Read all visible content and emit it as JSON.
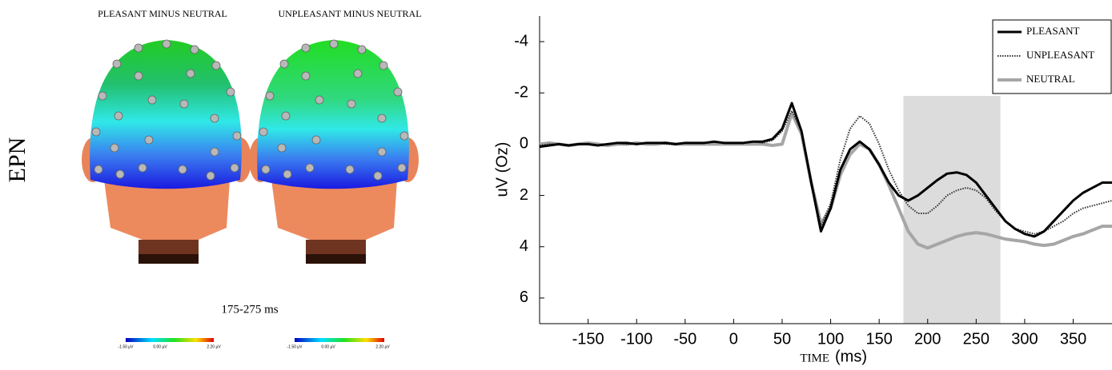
{
  "figure": {
    "row_label": "EPN",
    "map_titles": [
      "PLEASANT MINUS NEUTRAL",
      "UNPLEASANT MINUS NEUTRAL"
    ],
    "time_window": "175-275 ms",
    "colorbar_labels": [
      "-1.50 µV",
      "0.00 µV",
      "2.20 µV"
    ]
  },
  "chart_data": {
    "type": "line",
    "ylabel": "uV (Oz)",
    "xlabel": [
      "TIME",
      "(ms)"
    ],
    "x": [
      -200,
      -190,
      -180,
      -170,
      -160,
      -150,
      -140,
      -130,
      -120,
      -110,
      -100,
      -90,
      -80,
      -70,
      -60,
      -50,
      -40,
      -30,
      -20,
      -10,
      0,
      10,
      20,
      30,
      40,
      50,
      60,
      70,
      80,
      90,
      100,
      110,
      120,
      130,
      140,
      150,
      160,
      170,
      180,
      190,
      200,
      210,
      220,
      230,
      240,
      250,
      260,
      270,
      280,
      290,
      300,
      310,
      320,
      330,
      340,
      350,
      360,
      370,
      380,
      390
    ],
    "series": [
      {
        "name": "PLEASANT",
        "color": "#000000",
        "line_style": "solid",
        "values": [
          0.1,
          0.05,
          0,
          0.05,
          0,
          0,
          0.05,
          0,
          -0.05,
          -0.05,
          0,
          -0.05,
          -0.05,
          -0.05,
          0,
          -0.05,
          -0.05,
          -0.05,
          -0.1,
          -0.05,
          -0.05,
          -0.05,
          -0.1,
          -0.1,
          -0.2,
          -0.6,
          -1.6,
          -0.5,
          1.5,
          3.4,
          2.5,
          1.0,
          0.2,
          -0.1,
          0.2,
          0.8,
          1.5,
          2.0,
          2.2,
          2.0,
          1.7,
          1.4,
          1.15,
          1.1,
          1.2,
          1.5,
          2.0,
          2.5,
          3.0,
          3.3,
          3.5,
          3.6,
          3.4,
          3.0,
          2.6,
          2.2,
          1.9,
          1.7,
          1.5,
          1.5
        ]
      },
      {
        "name": "UNPLEASANT",
        "color": "#333333",
        "line_style": "dotted",
        "values": [
          0.05,
          0,
          0,
          0.05,
          0,
          0,
          0.05,
          0,
          -0.05,
          0,
          0,
          -0.05,
          -0.05,
          0,
          0,
          -0.05,
          -0.05,
          -0.05,
          -0.1,
          -0.05,
          -0.05,
          -0.05,
          -0.1,
          -0.05,
          -0.15,
          -0.5,
          -1.3,
          -0.5,
          1.4,
          3.2,
          2.3,
          0.6,
          -0.6,
          -1.1,
          -0.8,
          0,
          1.0,
          1.8,
          2.4,
          2.7,
          2.7,
          2.4,
          2.0,
          1.8,
          1.7,
          1.8,
          2.1,
          2.6,
          3.0,
          3.3,
          3.4,
          3.5,
          3.4,
          3.2,
          3.0,
          2.7,
          2.5,
          2.4,
          2.3,
          2.2
        ]
      },
      {
        "name": "NEUTRAL",
        "color": "#a6a6a6",
        "line_style": "thick",
        "values": [
          0,
          -0.05,
          0,
          0.05,
          0,
          -0.05,
          0,
          0.05,
          0,
          0,
          -0.05,
          0,
          0,
          -0.05,
          0,
          0,
          0,
          0,
          0,
          0,
          0,
          0,
          0,
          0,
          0.05,
          0,
          -1.2,
          -0.4,
          1.5,
          3.1,
          2.5,
          1.2,
          0.4,
          0,
          0.2,
          0.8,
          1.6,
          2.5,
          3.4,
          3.9,
          4.05,
          3.9,
          3.75,
          3.6,
          3.5,
          3.45,
          3.5,
          3.6,
          3.7,
          3.75,
          3.8,
          3.9,
          3.95,
          3.9,
          3.75,
          3.6,
          3.5,
          3.35,
          3.2,
          3.2
        ]
      }
    ],
    "shaded_region": [
      175,
      275
    ],
    "shade_color": "#dcdcdc",
    "xlim": [
      -200,
      390
    ],
    "xticks": [
      -150,
      -100,
      -50,
      0,
      50,
      100,
      150,
      200,
      250,
      300,
      350
    ],
    "ylim": [
      -5,
      7
    ],
    "y_inverted": true,
    "yticks": [
      -4,
      -2,
      0,
      2,
      4,
      6
    ],
    "legend": "upper right"
  }
}
